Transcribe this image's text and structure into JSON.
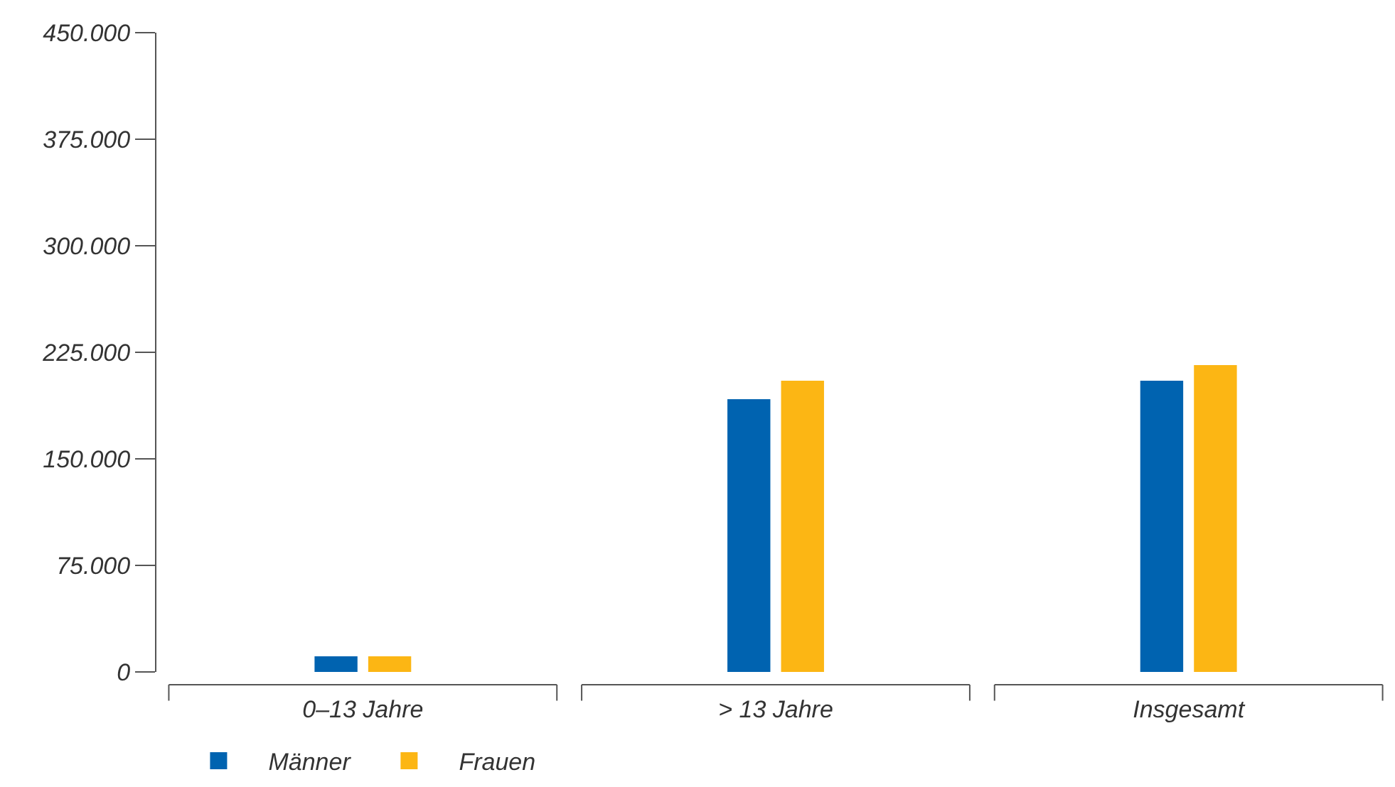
{
  "chart_data": {
    "type": "bar",
    "categories": [
      "0–13 Jahre",
      "> 13 Jahre",
      "Insgesamt"
    ],
    "series": [
      {
        "name": "Männer",
        "color": "#0063b0",
        "values": [
          11000,
          192000,
          205000
        ]
      },
      {
        "name": "Frauen",
        "color": "#fcb614",
        "values": [
          11000,
          205000,
          216000
        ]
      }
    ],
    "ylim": [
      0,
      450000
    ],
    "yticks": [
      {
        "value": 0,
        "label": "0"
      },
      {
        "value": 75000,
        "label": "75.000"
      },
      {
        "value": 150000,
        "label": "150.000"
      },
      {
        "value": 225000,
        "label": "225.000"
      },
      {
        "value": 300000,
        "label": "300.000"
      },
      {
        "value": 375000,
        "label": "375.000"
      },
      {
        "value": 450000,
        "label": "450.000"
      }
    ],
    "legend": "bottom left"
  }
}
